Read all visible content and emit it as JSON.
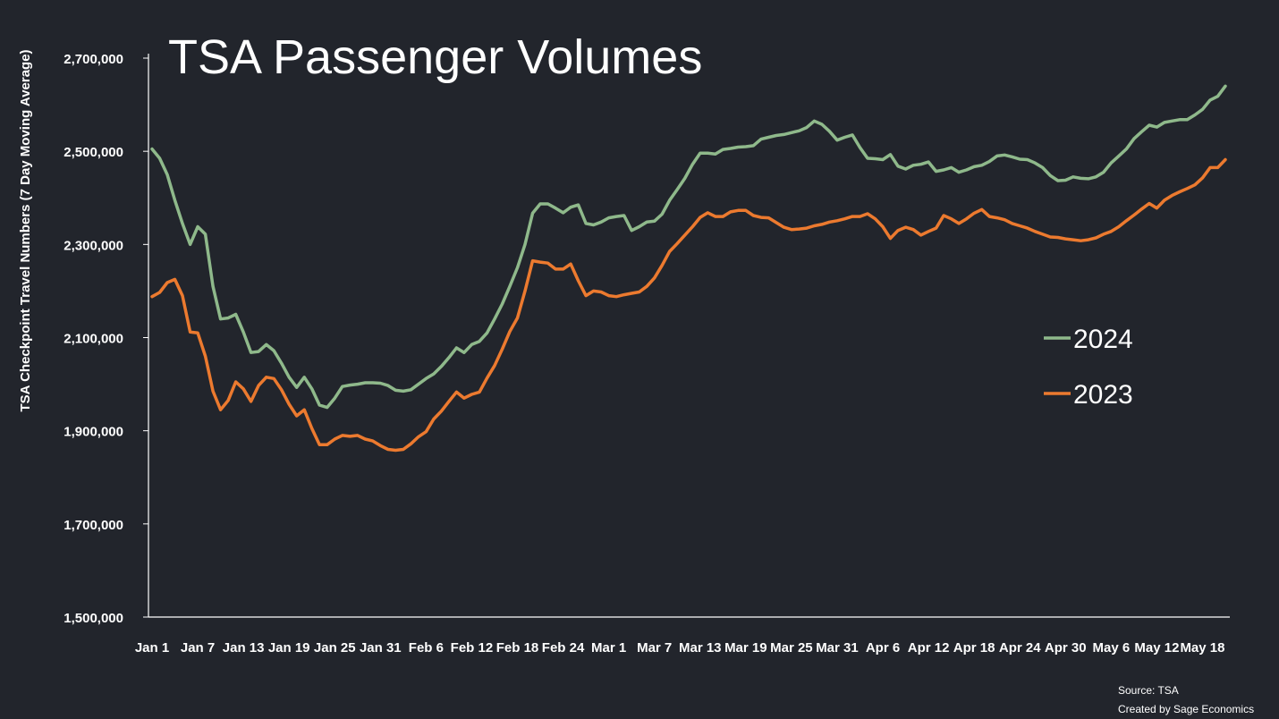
{
  "chart_data": {
    "type": "line",
    "title": "TSA Passenger Volumes",
    "ylabel": "TSA Checkpoint Travel Numbers (7 Day Moving Average)",
    "xlabel": "",
    "ylim": [
      1500000,
      2700000
    ],
    "yticks": [
      1500000,
      1700000,
      1900000,
      2100000,
      2300000,
      2500000,
      2700000
    ],
    "ytick_labels": [
      "1,500,000",
      "1,700,000",
      "1,900,000",
      "2,100,000",
      "2,300,000",
      "2,500,000",
      "2,700,000"
    ],
    "x_day_range": [
      1,
      142
    ],
    "xtick_days": [
      1,
      7,
      13,
      19,
      25,
      31,
      37,
      43,
      49,
      55,
      61,
      67,
      73,
      79,
      85,
      91,
      97,
      103,
      109,
      115,
      121,
      127,
      133,
      139
    ],
    "xtick_labels": [
      "Jan 1",
      "Jan 7",
      "Jan 13",
      "Jan 19",
      "Jan 25",
      "Jan 31",
      "Feb 6",
      "Feb 12",
      "Feb 18",
      "Feb 24",
      "Mar 1",
      "Mar 7",
      "Mar 13",
      "Mar 19",
      "Mar 25",
      "Mar 31",
      "Apr 6",
      "Apr 12",
      "Apr 18",
      "Apr 24",
      "Apr 30",
      "May 6",
      "May 12",
      "May 18"
    ],
    "grid": false,
    "legend_position": "right",
    "series": [
      {
        "name": "2024",
        "color": "#8fb98b",
        "points": [
          [
            1,
            2505000
          ],
          [
            2,
            2485000
          ],
          [
            3,
            2450000
          ],
          [
            4,
            2395000
          ],
          [
            5,
            2345000
          ],
          [
            6,
            2300000
          ],
          [
            7,
            2338000
          ],
          [
            8,
            2322000
          ],
          [
            9,
            2210000
          ],
          [
            10,
            2140000
          ],
          [
            11,
            2142000
          ],
          [
            12,
            2150000
          ],
          [
            13,
            2112000
          ],
          [
            14,
            2068000
          ],
          [
            15,
            2070000
          ],
          [
            16,
            2085000
          ],
          [
            17,
            2072000
          ],
          [
            18,
            2045000
          ],
          [
            19,
            2015000
          ],
          [
            20,
            1993000
          ],
          [
            21,
            2015000
          ],
          [
            22,
            1990000
          ],
          [
            23,
            1955000
          ],
          [
            24,
            1950000
          ],
          [
            25,
            1970000
          ],
          [
            26,
            1995000
          ],
          [
            27,
            1998000
          ],
          [
            28,
            2000000
          ],
          [
            29,
            2003000
          ],
          [
            30,
            2003000
          ],
          [
            31,
            2002000
          ],
          [
            32,
            1997000
          ],
          [
            33,
            1987000
          ],
          [
            34,
            1985000
          ],
          [
            35,
            1988000
          ],
          [
            36,
            2000000
          ],
          [
            37,
            2012000
          ],
          [
            38,
            2022000
          ],
          [
            39,
            2038000
          ],
          [
            40,
            2057000
          ],
          [
            41,
            2078000
          ],
          [
            42,
            2068000
          ],
          [
            43,
            2085000
          ],
          [
            44,
            2092000
          ],
          [
            45,
            2110000
          ],
          [
            46,
            2140000
          ],
          [
            47,
            2172000
          ],
          [
            48,
            2210000
          ],
          [
            49,
            2250000
          ],
          [
            50,
            2300000
          ],
          [
            51,
            2367000
          ],
          [
            52,
            2387000
          ],
          [
            53,
            2387000
          ],
          [
            54,
            2378000
          ],
          [
            55,
            2368000
          ],
          [
            56,
            2380000
          ],
          [
            57,
            2385000
          ],
          [
            58,
            2345000
          ],
          [
            59,
            2342000
          ],
          [
            60,
            2348000
          ],
          [
            61,
            2357000
          ],
          [
            62,
            2360000
          ],
          [
            63,
            2362000
          ],
          [
            64,
            2330000
          ],
          [
            65,
            2338000
          ],
          [
            66,
            2348000
          ],
          [
            67,
            2350000
          ],
          [
            68,
            2365000
          ],
          [
            69,
            2395000
          ],
          [
            70,
            2418000
          ],
          [
            71,
            2442000
          ],
          [
            72,
            2472000
          ],
          [
            73,
            2496000
          ],
          [
            74,
            2496000
          ],
          [
            75,
            2494000
          ],
          [
            76,
            2504000
          ],
          [
            77,
            2506000
          ],
          [
            78,
            2509000
          ],
          [
            79,
            2510000
          ],
          [
            80,
            2512000
          ],
          [
            81,
            2526000
          ],
          [
            82,
            2530000
          ],
          [
            83,
            2534000
          ],
          [
            84,
            2536000
          ],
          [
            85,
            2540000
          ],
          [
            86,
            2544000
          ],
          [
            87,
            2551000
          ],
          [
            88,
            2565000
          ],
          [
            89,
            2558000
          ],
          [
            90,
            2543000
          ],
          [
            91,
            2524000
          ],
          [
            92,
            2530000
          ],
          [
            93,
            2535000
          ],
          [
            94,
            2508000
          ],
          [
            95,
            2485000
          ],
          [
            96,
            2484000
          ],
          [
            97,
            2482000
          ],
          [
            98,
            2493000
          ],
          [
            99,
            2468000
          ],
          [
            100,
            2462000
          ],
          [
            101,
            2470000
          ],
          [
            102,
            2472000
          ],
          [
            103,
            2477000
          ],
          [
            104,
            2457000
          ],
          [
            105,
            2460000
          ],
          [
            106,
            2465000
          ],
          [
            107,
            2455000
          ],
          [
            108,
            2460000
          ],
          [
            109,
            2467000
          ],
          [
            110,
            2470000
          ],
          [
            111,
            2478000
          ],
          [
            112,
            2490000
          ],
          [
            113,
            2492000
          ],
          [
            114,
            2488000
          ],
          [
            115,
            2483000
          ],
          [
            116,
            2482000
          ],
          [
            117,
            2475000
          ],
          [
            118,
            2465000
          ],
          [
            119,
            2448000
          ],
          [
            120,
            2437000
          ],
          [
            121,
            2438000
          ],
          [
            122,
            2445000
          ],
          [
            123,
            2442000
          ],
          [
            124,
            2441000
          ],
          [
            125,
            2445000
          ],
          [
            126,
            2455000
          ],
          [
            127,
            2475000
          ],
          [
            128,
            2490000
          ],
          [
            129,
            2505000
          ],
          [
            130,
            2527000
          ],
          [
            131,
            2542000
          ],
          [
            132,
            2556000
          ],
          [
            133,
            2552000
          ],
          [
            134,
            2562000
          ],
          [
            135,
            2565000
          ],
          [
            136,
            2568000
          ],
          [
            137,
            2568000
          ],
          [
            138,
            2578000
          ],
          [
            139,
            2590000
          ],
          [
            140,
            2610000
          ],
          [
            141,
            2618000
          ],
          [
            142,
            2640000
          ]
        ]
      },
      {
        "name": "2023",
        "color": "#ec7a2f",
        "points": [
          [
            1,
            2188000
          ],
          [
            2,
            2197000
          ],
          [
            3,
            2218000
          ],
          [
            4,
            2225000
          ],
          [
            5,
            2190000
          ],
          [
            6,
            2112000
          ],
          [
            7,
            2110000
          ],
          [
            8,
            2060000
          ],
          [
            9,
            1985000
          ],
          [
            10,
            1945000
          ],
          [
            11,
            1965000
          ],
          [
            12,
            2005000
          ],
          [
            13,
            1990000
          ],
          [
            14,
            1963000
          ],
          [
            15,
            1997000
          ],
          [
            16,
            2015000
          ],
          [
            17,
            2012000
          ],
          [
            18,
            1988000
          ],
          [
            19,
            1957000
          ],
          [
            20,
            1932000
          ],
          [
            21,
            1945000
          ],
          [
            22,
            1905000
          ],
          [
            23,
            1870000
          ],
          [
            24,
            1870000
          ],
          [
            25,
            1882000
          ],
          [
            26,
            1890000
          ],
          [
            27,
            1888000
          ],
          [
            28,
            1890000
          ],
          [
            29,
            1882000
          ],
          [
            30,
            1878000
          ],
          [
            31,
            1868000
          ],
          [
            32,
            1860000
          ],
          [
            33,
            1858000
          ],
          [
            34,
            1860000
          ],
          [
            35,
            1872000
          ],
          [
            36,
            1887000
          ],
          [
            37,
            1898000
          ],
          [
            38,
            1925000
          ],
          [
            39,
            1942000
          ],
          [
            40,
            1963000
          ],
          [
            41,
            1983000
          ],
          [
            42,
            1970000
          ],
          [
            43,
            1978000
          ],
          [
            44,
            1983000
          ],
          [
            45,
            2013000
          ],
          [
            46,
            2040000
          ],
          [
            47,
            2075000
          ],
          [
            48,
            2113000
          ],
          [
            49,
            2142000
          ],
          [
            50,
            2200000
          ],
          [
            51,
            2265000
          ],
          [
            52,
            2262000
          ],
          [
            53,
            2260000
          ],
          [
            54,
            2247000
          ],
          [
            55,
            2247000
          ],
          [
            56,
            2258000
          ],
          [
            57,
            2222000
          ],
          [
            58,
            2190000
          ],
          [
            59,
            2200000
          ],
          [
            60,
            2198000
          ],
          [
            61,
            2190000
          ],
          [
            62,
            2188000
          ],
          [
            63,
            2192000
          ],
          [
            64,
            2195000
          ],
          [
            65,
            2198000
          ],
          [
            66,
            2210000
          ],
          [
            67,
            2228000
          ],
          [
            68,
            2255000
          ],
          [
            69,
            2285000
          ],
          [
            70,
            2302000
          ],
          [
            71,
            2320000
          ],
          [
            72,
            2338000
          ],
          [
            73,
            2358000
          ],
          [
            74,
            2368000
          ],
          [
            75,
            2360000
          ],
          [
            76,
            2360000
          ],
          [
            77,
            2370000
          ],
          [
            78,
            2373000
          ],
          [
            79,
            2373000
          ],
          [
            80,
            2362000
          ],
          [
            81,
            2358000
          ],
          [
            82,
            2357000
          ],
          [
            83,
            2347000
          ],
          [
            84,
            2337000
          ],
          [
            85,
            2332000
          ],
          [
            86,
            2333000
          ],
          [
            87,
            2335000
          ],
          [
            88,
            2340000
          ],
          [
            89,
            2343000
          ],
          [
            90,
            2348000
          ],
          [
            91,
            2351000
          ],
          [
            92,
            2355000
          ],
          [
            93,
            2360000
          ],
          [
            94,
            2360000
          ],
          [
            95,
            2366000
          ],
          [
            96,
            2355000
          ],
          [
            97,
            2338000
          ],
          [
            98,
            2313000
          ],
          [
            99,
            2330000
          ],
          [
            100,
            2337000
          ],
          [
            101,
            2332000
          ],
          [
            102,
            2320000
          ],
          [
            103,
            2328000
          ],
          [
            104,
            2335000
          ],
          [
            105,
            2362000
          ],
          [
            106,
            2355000
          ],
          [
            107,
            2345000
          ],
          [
            108,
            2355000
          ],
          [
            109,
            2367000
          ],
          [
            110,
            2375000
          ],
          [
            111,
            2360000
          ],
          [
            112,
            2357000
          ],
          [
            113,
            2353000
          ],
          [
            114,
            2345000
          ],
          [
            115,
            2340000
          ],
          [
            116,
            2335000
          ],
          [
            117,
            2328000
          ],
          [
            118,
            2322000
          ],
          [
            119,
            2316000
          ],
          [
            120,
            2315000
          ],
          [
            121,
            2312000
          ],
          [
            122,
            2310000
          ],
          [
            123,
            2308000
          ],
          [
            124,
            2310000
          ],
          [
            125,
            2314000
          ],
          [
            126,
            2322000
          ],
          [
            127,
            2328000
          ],
          [
            128,
            2338000
          ],
          [
            129,
            2351000
          ],
          [
            130,
            2363000
          ],
          [
            131,
            2376000
          ],
          [
            132,
            2388000
          ],
          [
            133,
            2378000
          ],
          [
            134,
            2395000
          ],
          [
            135,
            2405000
          ],
          [
            136,
            2413000
          ],
          [
            137,
            2420000
          ],
          [
            138,
            2428000
          ],
          [
            139,
            2443000
          ],
          [
            140,
            2465000
          ],
          [
            141,
            2465000
          ],
          [
            142,
            2482000
          ]
        ]
      }
    ],
    "source_lines": [
      "Source: TSA",
      "Created by Sage Economics"
    ]
  }
}
